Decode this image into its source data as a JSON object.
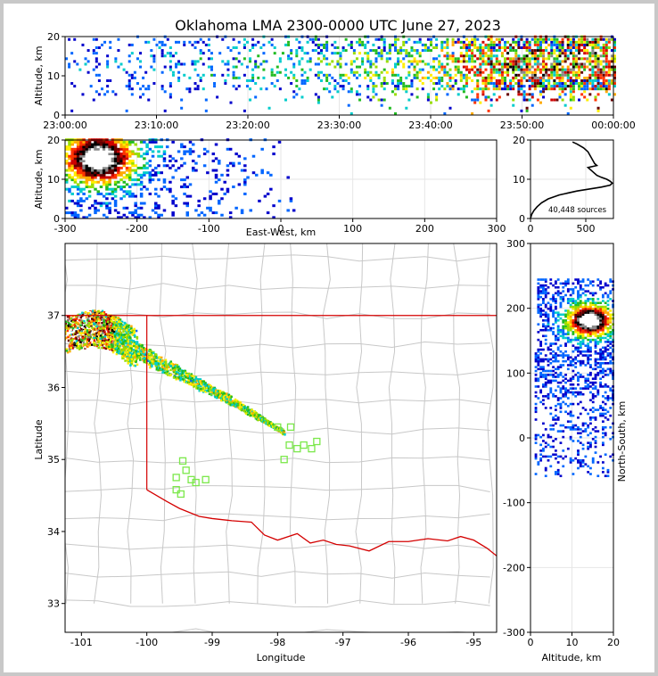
{
  "title": "Oklahoma LMA 2300-0000 UTC June 27, 2023",
  "colors": {
    "border": "#d40000",
    "county": "#c8c8c8",
    "station": "#7be84a",
    "grid": "#e6e6e6",
    "colormap": [
      "#0000cc",
      "#0066ff",
      "#00cccc",
      "#22bb22",
      "#99dd00",
      "#ffee00",
      "#ffaa00",
      "#ff3300",
      "#cc0000",
      "#660000",
      "#000000",
      "#888888",
      "#ffffff"
    ]
  },
  "chart_data": [
    {
      "id": "time-height",
      "type": "heatmap",
      "title": "Oklahoma LMA 2300-0000 UTC June 27, 2023",
      "ylabel": "Altitude, km",
      "xlim": [
        "23:00:00",
        "00:00:00"
      ],
      "ylim": [
        0,
        20
      ],
      "xticks": [
        "23:00:00",
        "23:10:00",
        "23:20:00",
        "23:30:00",
        "23:40:00",
        "23:50:00",
        "00:00:00"
      ],
      "yticks": [
        0,
        10,
        20
      ],
      "density_profile_minutes": [
        0,
        10,
        20,
        30,
        40,
        45,
        50,
        55,
        60
      ],
      "density_profile_values": [
        0.15,
        0.2,
        0.25,
        0.35,
        0.5,
        0.7,
        0.85,
        0.95,
        1.0
      ]
    },
    {
      "id": "east-west-altitude",
      "type": "heatmap",
      "xlabel": "East-West, km",
      "ylabel": "Altitude, km",
      "xlim": [
        -300,
        300
      ],
      "ylim": [
        0,
        20
      ],
      "xticks": [
        -300,
        -200,
        -100,
        0,
        100,
        200,
        300
      ],
      "yticks": [
        0,
        10,
        20
      ],
      "core_center_km": [
        -255,
        15
      ],
      "source_extent_km": [
        -300,
        30
      ]
    },
    {
      "id": "altitude-histogram",
      "type": "line",
      "xlim": [
        0,
        750
      ],
      "ylim": [
        0,
        20
      ],
      "xticks": [
        0,
        500
      ],
      "yticks": [
        0,
        10,
        20
      ],
      "annotation": "40,448 sources",
      "altitude_km": [
        0,
        1,
        2,
        3,
        4,
        5,
        6,
        7,
        8,
        8.5,
        9,
        9.5,
        10,
        10.5,
        11,
        12,
        13,
        13.5,
        14,
        15,
        16,
        17,
        18,
        19,
        19.5
      ],
      "counts": [
        0,
        10,
        30,
        60,
        100,
        160,
        260,
        420,
        640,
        720,
        740,
        720,
        690,
        640,
        600,
        560,
        520,
        600,
        580,
        560,
        540,
        520,
        480,
        420,
        380
      ]
    },
    {
      "id": "plan-view",
      "type": "scatter",
      "xlabel": "Longitude",
      "ylabel": "Latitude",
      "xlim": [
        -101.25,
        -94.65
      ],
      "ylim": [
        32.6,
        38.0
      ],
      "xticks": [
        -101,
        -100,
        -99,
        -98,
        -97,
        -96,
        -95
      ],
      "yticks": [
        33,
        34,
        35,
        36,
        37
      ],
      "oklahoma_border_lat": 37.0,
      "panhandle_east_lon": -100.0,
      "red_river": {
        "lon": [
          -100.0,
          -99.7,
          -99.5,
          -99.2,
          -99.0,
          -98.7,
          -98.4,
          -98.2,
          -98.0,
          -97.7,
          -97.5,
          -97.3,
          -97.1,
          -96.9,
          -96.6,
          -96.3,
          -96.0,
          -95.7,
          -95.4,
          -95.2,
          -95.0,
          -94.8,
          -94.62
        ],
        "lat": [
          34.58,
          34.42,
          34.32,
          34.21,
          34.18,
          34.15,
          34.13,
          33.95,
          33.88,
          33.97,
          33.84,
          33.88,
          33.82,
          33.8,
          33.73,
          33.86,
          33.86,
          33.9,
          33.87,
          33.93,
          33.88,
          33.77,
          33.64
        ]
      },
      "stations": {
        "lon": [
          -99.55,
          -99.45,
          -99.4,
          -99.55,
          -99.25,
          -99.32,
          -99.1,
          -99.48,
          -98.0,
          -97.9,
          -97.8,
          -97.7,
          -97.6,
          -97.48,
          -97.4,
          -97.82
        ],
        "lat": [
          34.75,
          34.98,
          34.85,
          34.58,
          34.68,
          34.72,
          34.72,
          34.52,
          35.45,
          35.0,
          35.45,
          35.15,
          35.2,
          35.15,
          35.25,
          35.2
        ]
      },
      "storm_track": {
        "lon": [
          -101.25,
          -100.8,
          -100.5,
          -100.2,
          -99.9,
          -99.5,
          -99.1,
          -98.7,
          -98.3,
          -97.9
        ],
        "lat": [
          36.75,
          36.85,
          36.75,
          36.55,
          36.38,
          36.2,
          36.0,
          35.82,
          35.6,
          35.38
        ]
      }
    },
    {
      "id": "north-south-altitude",
      "type": "heatmap",
      "xlabel": "Altitude, km",
      "ylabel": "North-South, km",
      "xlim": [
        0,
        20
      ],
      "ylim": [
        -300,
        300
      ],
      "xticks": [
        0,
        10,
        20
      ],
      "yticks": [
        -300,
        -200,
        -100,
        0,
        100,
        200,
        300
      ],
      "core_center_km": [
        14,
        180
      ],
      "source_extent_km": [
        -60,
        245
      ]
    }
  ]
}
